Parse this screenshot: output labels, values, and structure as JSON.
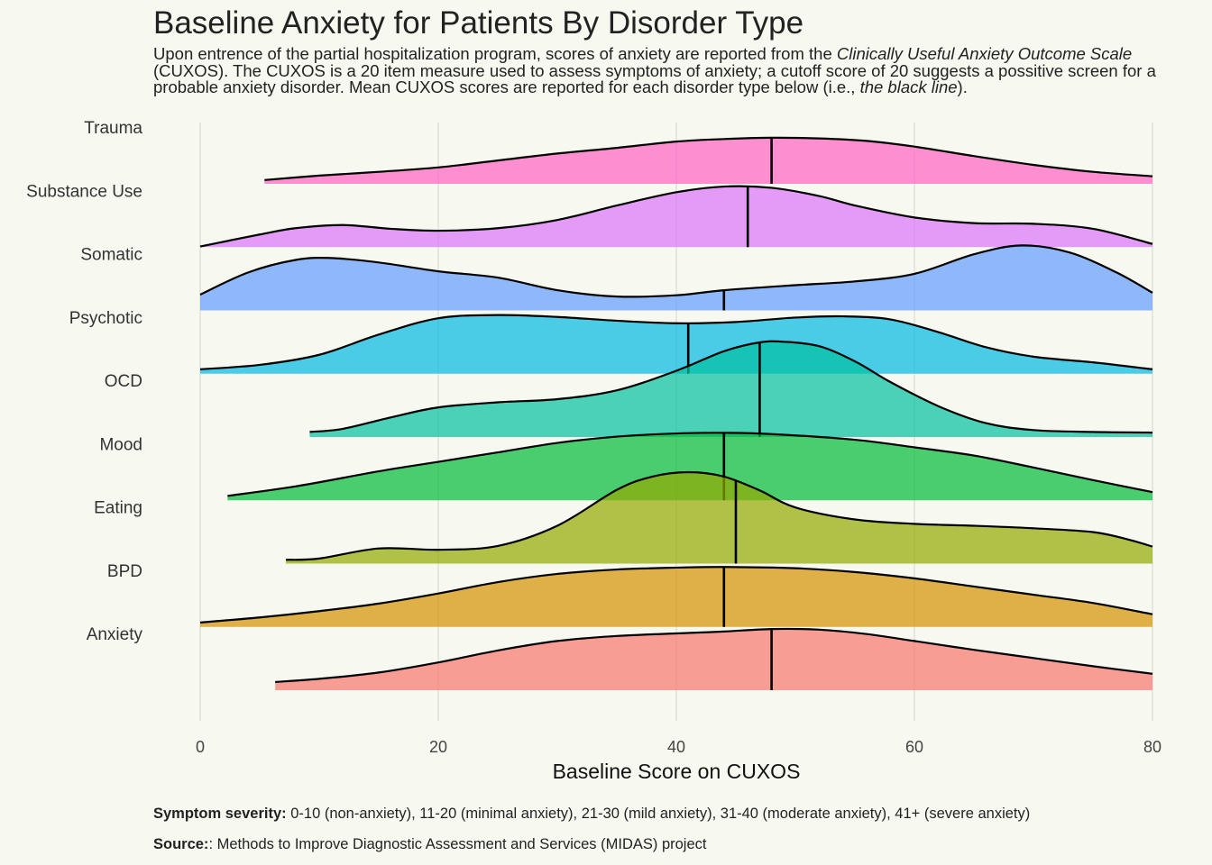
{
  "title": "Baseline Anxiety for Patients By Disorder Type",
  "subtitle": {
    "p1": "Upon entrence of the partial hospitalization program, scores of anxiety are reported from the ",
    "em1": "Clinically Useful Anxiety Outcome Scale",
    "p2": " (CUXOS). The CUXOS is a 20 item measure used to assess symptoms of anxiety; a cutoff score of 20 suggests a possitive screen for a probable anxiety disorder. Mean CUXOS scores are reported for each disorder type below (i.e., ",
    "em2": "the black line",
    "p3": ")."
  },
  "caption": {
    "severity_label": "Symptom severity:",
    "severity_text": " 0-10 (non-anxiety), 11-20 (minimal anxiety), 21-30 (mild anxiety), 31-40 (moderate anxiety), 41+ (severe anxiety)",
    "source_label": "Source:",
    "source_text": ": Methods to Improve Diagnostic Assessment and Services (MIDAS) project"
  },
  "chart_data": {
    "type": "ridgeline density",
    "xlabel": "Baseline Score on CUXOS",
    "xlim": [
      0,
      80
    ],
    "xticks": [
      0,
      20,
      40,
      60,
      80
    ],
    "grid": true,
    "categories": [
      "Anxiety",
      "BPD",
      "Eating",
      "Mood",
      "OCD",
      "Psychotic",
      "Somatic",
      "Substance Use",
      "Trauma"
    ],
    "series": [
      {
        "name": "Anxiety",
        "color": "#f8766d",
        "mean": 48.0,
        "x": [
          6.3,
          10,
          15,
          20,
          25,
          30,
          35,
          40,
          44,
          48,
          52,
          56,
          60,
          65,
          70,
          75,
          80
        ],
        "density": [
          0.13,
          0.18,
          0.28,
          0.44,
          0.63,
          0.78,
          0.86,
          0.9,
          0.93,
          0.97,
          0.96,
          0.89,
          0.78,
          0.64,
          0.51,
          0.38,
          0.26
        ]
      },
      {
        "name": "BPD",
        "color": "#d39200",
        "mean": 44.0,
        "x": [
          0,
          5,
          10,
          15,
          20,
          25,
          30,
          35,
          40,
          44,
          50,
          55,
          60,
          65,
          70,
          75,
          80
        ],
        "density": [
          0.07,
          0.15,
          0.25,
          0.37,
          0.53,
          0.71,
          0.84,
          0.91,
          0.94,
          0.95,
          0.93,
          0.87,
          0.77,
          0.64,
          0.51,
          0.38,
          0.2
        ]
      },
      {
        "name": "Eating",
        "color": "#93aa00",
        "mean": 45.0,
        "x": [
          7.2,
          10,
          15,
          20,
          25,
          30,
          35,
          38,
          41,
          44,
          47,
          50,
          55,
          60,
          65,
          70,
          75,
          78,
          80
        ],
        "density": [
          0.06,
          0.08,
          0.24,
          0.22,
          0.28,
          0.6,
          1.17,
          1.38,
          1.45,
          1.38,
          1.16,
          0.89,
          0.7,
          0.63,
          0.6,
          0.56,
          0.5,
          0.38,
          0.27
        ]
      },
      {
        "name": "Mood",
        "color": "#00ba38",
        "mean": 44.0,
        "x": [
          2.3,
          8,
          15,
          20,
          25,
          30,
          35,
          40,
          44,
          48,
          55,
          60,
          65,
          70,
          75,
          80
        ],
        "density": [
          0.07,
          0.22,
          0.46,
          0.61,
          0.76,
          0.91,
          1.01,
          1.06,
          1.07,
          1.05,
          0.96,
          0.84,
          0.71,
          0.52,
          0.32,
          0.13
        ]
      },
      {
        "name": "OCD",
        "color": "#00c19f",
        "mean": 47.0,
        "x": [
          9.2,
          12,
          16,
          20,
          25,
          30,
          35,
          40,
          44,
          47,
          49,
          52,
          55,
          58,
          62,
          66,
          70,
          75,
          80
        ],
        "density": [
          0.08,
          0.13,
          0.31,
          0.47,
          0.55,
          0.6,
          0.74,
          1.05,
          1.36,
          1.5,
          1.51,
          1.44,
          1.2,
          0.87,
          0.49,
          0.22,
          0.11,
          0.08,
          0.07
        ]
      },
      {
        "name": "Psychotic",
        "color": "#00b9e3",
        "mean": 41.0,
        "x": [
          0,
          5,
          10,
          15,
          20,
          25,
          30,
          35,
          40,
          45,
          50,
          54,
          58,
          62,
          66,
          70,
          75,
          80
        ],
        "density": [
          0.07,
          0.14,
          0.3,
          0.62,
          0.88,
          0.93,
          0.9,
          0.84,
          0.8,
          0.82,
          0.89,
          0.91,
          0.86,
          0.66,
          0.42,
          0.27,
          0.18,
          0.07
        ]
      },
      {
        "name": "Somatic",
        "color": "#619cff",
        "mean": 44.0,
        "x": [
          0,
          4,
          8,
          11,
          15,
          20,
          25,
          30,
          35,
          40,
          44,
          50,
          55,
          60,
          65,
          69,
          73,
          77,
          80
        ],
        "density": [
          0.25,
          0.6,
          0.8,
          0.83,
          0.76,
          0.62,
          0.52,
          0.32,
          0.22,
          0.24,
          0.32,
          0.4,
          0.46,
          0.58,
          0.89,
          1.03,
          0.92,
          0.6,
          0.28
        ]
      },
      {
        "name": "Substance Use",
        "color": "#db72fb",
        "mean": 46.0,
        "x": [
          0,
          5,
          8,
          12,
          16,
          20,
          25,
          30,
          35,
          40,
          44,
          48,
          52,
          55,
          60,
          65,
          70,
          75,
          80
        ],
        "density": [
          0.01,
          0.2,
          0.3,
          0.35,
          0.29,
          0.26,
          0.3,
          0.43,
          0.66,
          0.87,
          0.96,
          0.94,
          0.81,
          0.66,
          0.47,
          0.38,
          0.37,
          0.29,
          0.05
        ]
      },
      {
        "name": "Trauma",
        "color": "#ff61c3",
        "mean": 48.0,
        "x": [
          5.4,
          10,
          15,
          20,
          25,
          30,
          35,
          40,
          44,
          48,
          52,
          56,
          60,
          65,
          70,
          75,
          80
        ],
        "density": [
          0.06,
          0.13,
          0.19,
          0.26,
          0.37,
          0.48,
          0.57,
          0.67,
          0.71,
          0.73,
          0.72,
          0.68,
          0.59,
          0.44,
          0.3,
          0.19,
          0.12
        ]
      }
    ]
  }
}
